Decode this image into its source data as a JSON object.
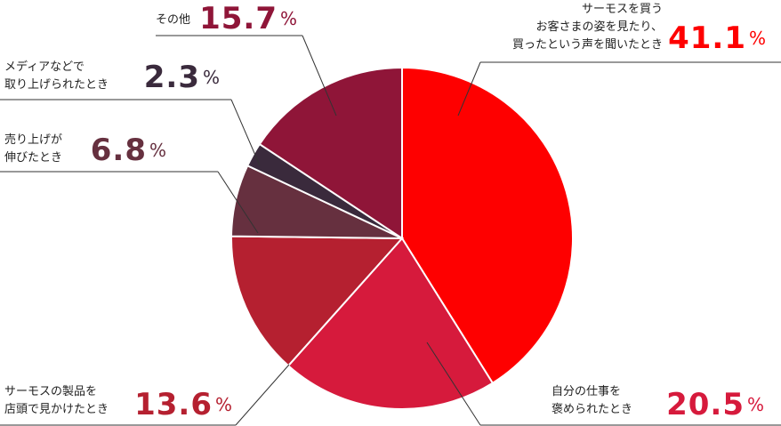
{
  "chart_data": {
    "type": "pie",
    "categories": [
      "サーモスを買う\nお客さまの姿を見たり、\n買ったという声を聞いたとき",
      "自分の仕事を\n褒められたとき",
      "サーモスの製品を\n店頭で見かけたとき",
      "売り上げが\n伸びたとき",
      "メディアなどで\n取り上げられたとき",
      "その他"
    ],
    "values": [
      41.1,
      20.5,
      13.6,
      6.8,
      2.3,
      15.7
    ],
    "value_labels": [
      "41.1%",
      "20.5%",
      "13.6%",
      "6.8%",
      "2.3%",
      "15.7%"
    ],
    "colors": [
      "#fe0000",
      "#d61a3c",
      "#b52030",
      "#66303f",
      "#3a2a3c",
      "#8f1538"
    ]
  }
}
